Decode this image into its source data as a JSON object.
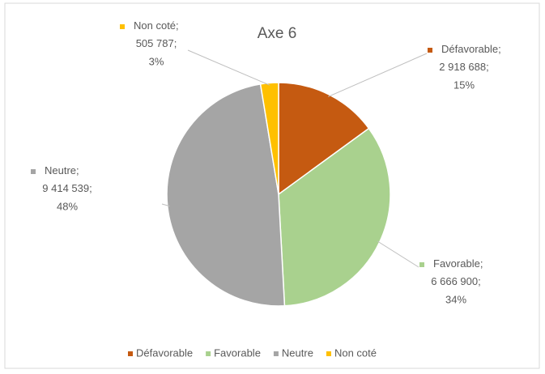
{
  "chart_data": {
    "type": "pie",
    "title": "Axe 6",
    "categories": [
      "Défavorable",
      "Favorable",
      "Neutre",
      "Non coté"
    ],
    "values": [
      2918688,
      6666900,
      9414539,
      505787
    ],
    "value_labels": [
      "2 918 688",
      "6 666 900",
      "9 414 539",
      "505 787"
    ],
    "percents": [
      15,
      34,
      48,
      3
    ],
    "percent_labels": [
      "15%",
      "34%",
      "48%",
      "3%"
    ],
    "label_separator": ";",
    "colors": [
      "#c55a11",
      "#a9d18e",
      "#a5a5a5",
      "#ffc000"
    ],
    "legend": "bottom"
  }
}
